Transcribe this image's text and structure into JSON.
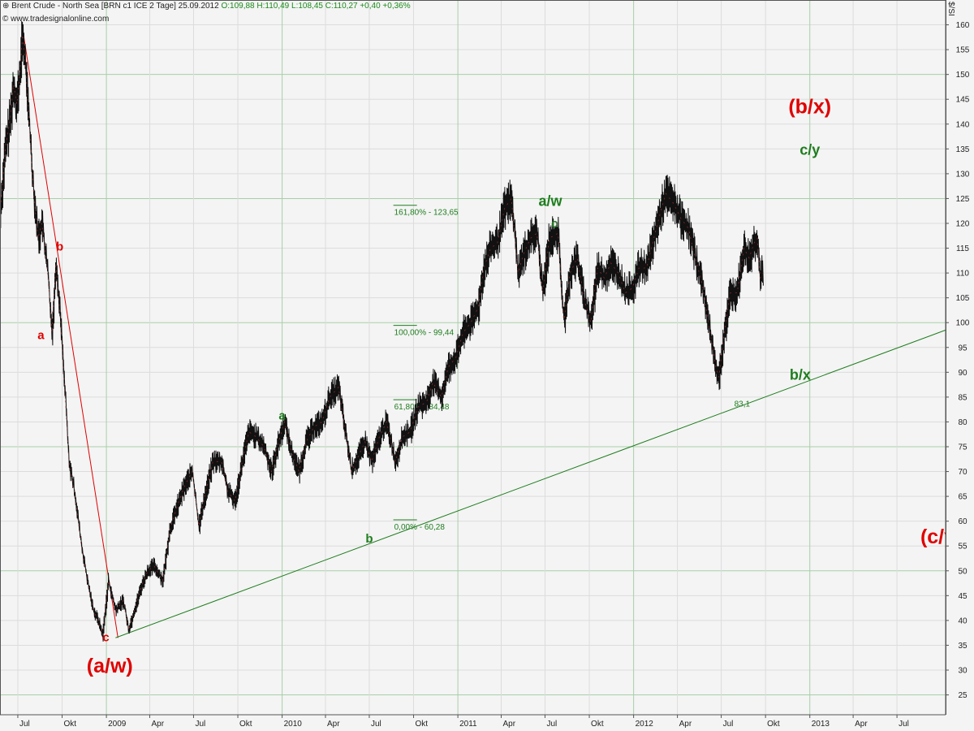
{
  "header": {
    "instrument": "Brent Crude - North Sea [BRN c1 ICE  2 Tage] 25.09.2012",
    "ohlc": "O:109,88 H:110,49 L:108,45",
    "change": "C:110,27 +0,40 +0,36%",
    "source": "© www.tradesignalonline.com",
    "unit": "$/SI"
  },
  "chart_data": {
    "type": "line",
    "title": "Brent Crude - North Sea [BRN c1 ICE  2 Tage] 25.09.2012",
    "ylim": [
      21,
      165
    ],
    "xlim": [
      "2008-05-25",
      "2013-10-10"
    ],
    "y_ticks": [
      25,
      30,
      35,
      40,
      45,
      50,
      55,
      60,
      65,
      70,
      75,
      80,
      85,
      90,
      95,
      100,
      105,
      110,
      115,
      120,
      125,
      130,
      135,
      140,
      145,
      150,
      155,
      160
    ],
    "grid": true,
    "x_ticks": [
      {
        "date": "2008-07-01",
        "label": "Jul"
      },
      {
        "date": "2008-10-01",
        "label": "Okt"
      },
      {
        "date": "2009-01-01",
        "label": "2009"
      },
      {
        "date": "2009-04-01",
        "label": "Apr"
      },
      {
        "date": "2009-07-01",
        "label": "Jul"
      },
      {
        "date": "2009-10-01",
        "label": "Okt"
      },
      {
        "date": "2010-01-01",
        "label": "2010"
      },
      {
        "date": "2010-04-01",
        "label": "Apr"
      },
      {
        "date": "2010-07-01",
        "label": "Jul"
      },
      {
        "date": "2010-10-01",
        "label": "Okt"
      },
      {
        "date": "2011-01-01",
        "label": "2011"
      },
      {
        "date": "2011-04-01",
        "label": "Apr"
      },
      {
        "date": "2011-07-01",
        "label": "Jul"
      },
      {
        "date": "2011-10-01",
        "label": "Okt"
      },
      {
        "date": "2012-01-01",
        "label": "2012"
      },
      {
        "date": "2012-04-01",
        "label": "Apr"
      },
      {
        "date": "2012-07-01",
        "label": "Jul"
      },
      {
        "date": "2012-10-01",
        "label": "Okt"
      },
      {
        "date": "2013-01-01",
        "label": "2013"
      },
      {
        "date": "2013-04-01",
        "label": "Apr"
      },
      {
        "date": "2013-07-01",
        "label": "Jul"
      }
    ],
    "series": [
      {
        "color": "#111111",
        "points": [
          [
            "2008-05-25",
            122
          ],
          [
            "2008-06-05",
            135
          ],
          [
            "2008-06-15",
            141
          ],
          [
            "2008-06-22",
            148
          ],
          [
            "2008-06-29",
            144
          ],
          [
            "2008-07-05",
            150
          ],
          [
            "2008-07-11",
            158
          ],
          [
            "2008-07-18",
            150
          ],
          [
            "2008-07-26",
            138
          ],
          [
            "2008-08-03",
            126
          ],
          [
            "2008-08-12",
            117
          ],
          [
            "2008-08-20",
            120
          ],
          [
            "2008-09-01",
            110
          ],
          [
            "2008-09-10",
            98
          ],
          [
            "2008-09-18",
            112
          ],
          [
            "2008-09-28",
            100
          ],
          [
            "2008-10-08",
            84
          ],
          [
            "2008-10-15",
            72
          ],
          [
            "2008-10-28",
            65
          ],
          [
            "2008-11-10",
            55
          ],
          [
            "2008-11-22",
            48
          ],
          [
            "2008-12-05",
            42
          ],
          [
            "2008-12-15",
            40
          ],
          [
            "2008-12-24",
            37
          ],
          [
            "2009-01-05",
            48
          ],
          [
            "2009-01-12",
            45
          ],
          [
            "2009-01-20",
            42
          ],
          [
            "2009-02-05",
            44
          ],
          [
            "2009-02-16",
            38
          ],
          [
            "2009-02-28",
            42
          ],
          [
            "2009-03-15",
            47
          ],
          [
            "2009-03-28",
            50
          ],
          [
            "2009-04-10",
            51
          ],
          [
            "2009-04-28",
            48
          ],
          [
            "2009-05-12",
            58
          ],
          [
            "2009-05-28",
            63
          ],
          [
            "2009-06-12",
            67
          ],
          [
            "2009-06-28",
            70
          ],
          [
            "2009-07-12",
            59
          ],
          [
            "2009-07-22",
            64
          ],
          [
            "2009-08-10",
            72
          ],
          [
            "2009-08-28",
            72
          ],
          [
            "2009-09-10",
            66
          ],
          [
            "2009-09-25",
            64
          ],
          [
            "2009-10-10",
            72
          ],
          [
            "2009-10-24",
            78
          ],
          [
            "2009-11-08",
            77
          ],
          [
            "2009-11-24",
            75
          ],
          [
            "2009-12-10",
            70
          ],
          [
            "2009-12-22",
            75
          ],
          [
            "2010-01-06",
            80
          ],
          [
            "2010-01-20",
            74
          ],
          [
            "2010-02-05",
            70
          ],
          [
            "2010-02-20",
            76
          ],
          [
            "2010-03-08",
            79
          ],
          [
            "2010-03-25",
            80
          ],
          [
            "2010-04-10",
            85
          ],
          [
            "2010-04-28",
            87
          ],
          [
            "2010-05-12",
            78
          ],
          [
            "2010-05-25",
            70
          ],
          [
            "2010-06-08",
            73
          ],
          [
            "2010-06-22",
            76
          ],
          [
            "2010-07-06",
            72
          ],
          [
            "2010-07-22",
            77
          ],
          [
            "2010-08-06",
            80
          ],
          [
            "2010-08-24",
            72
          ],
          [
            "2010-09-08",
            77
          ],
          [
            "2010-09-24",
            78
          ],
          [
            "2010-10-10",
            83
          ],
          [
            "2010-10-28",
            84
          ],
          [
            "2010-11-10",
            88
          ],
          [
            "2010-11-28",
            85
          ],
          [
            "2010-12-12",
            91
          ],
          [
            "2010-12-28",
            93
          ],
          [
            "2011-01-12",
            98
          ],
          [
            "2011-01-28",
            100
          ],
          [
            "2011-02-12",
            103
          ],
          [
            "2011-02-24",
            111
          ],
          [
            "2011-03-10",
            115
          ],
          [
            "2011-03-24",
            116
          ],
          [
            "2011-04-08",
            123
          ],
          [
            "2011-04-22",
            125
          ],
          [
            "2011-05-06",
            110
          ],
          [
            "2011-05-18",
            114
          ],
          [
            "2011-06-01",
            117
          ],
          [
            "2011-06-14",
            118
          ],
          [
            "2011-06-26",
            106
          ],
          [
            "2011-07-10",
            117
          ],
          [
            "2011-07-28",
            118
          ],
          [
            "2011-08-09",
            100
          ],
          [
            "2011-08-22",
            110
          ],
          [
            "2011-09-06",
            113
          ],
          [
            "2011-09-22",
            104
          ],
          [
            "2011-10-04",
            100
          ],
          [
            "2011-10-18",
            111
          ],
          [
            "2011-11-01",
            109
          ],
          [
            "2011-11-15",
            112
          ],
          [
            "2011-11-30",
            110
          ],
          [
            "2011-12-15",
            106
          ],
          [
            "2011-12-30",
            107
          ],
          [
            "2012-01-12",
            111
          ],
          [
            "2012-01-28",
            111
          ],
          [
            "2012-02-12",
            117
          ],
          [
            "2012-02-28",
            123
          ],
          [
            "2012-03-08",
            126
          ],
          [
            "2012-03-24",
            124
          ],
          [
            "2012-04-08",
            121
          ],
          [
            "2012-04-24",
            119
          ],
          [
            "2012-05-08",
            113
          ],
          [
            "2012-05-22",
            108
          ],
          [
            "2012-06-06",
            99
          ],
          [
            "2012-06-20",
            91
          ],
          [
            "2012-06-26",
            89
          ],
          [
            "2012-07-06",
            97
          ],
          [
            "2012-07-20",
            106
          ],
          [
            "2012-08-03",
            106
          ],
          [
            "2012-08-17",
            115
          ],
          [
            "2012-08-28",
            113
          ],
          [
            "2012-09-07",
            116
          ],
          [
            "2012-09-14",
            117
          ],
          [
            "2012-09-20",
            109
          ],
          [
            "2012-09-25",
            110
          ]
        ]
      }
    ],
    "trendlines": [
      {
        "from": [
          "2008-07-12",
          158.5
        ],
        "to": [
          "2009-01-25",
          36.5
        ],
        "color": "#e00000"
      },
      {
        "from": [
          "2009-01-20",
          36.5
        ],
        "to": [
          "2013-10-10",
          98.5
        ],
        "color": "#1e7d1e"
      }
    ],
    "fib_levels": [
      {
        "label": "161,80% - 123,65",
        "value": 123.65
      },
      {
        "label": "100,00% - 99,44",
        "value": 99.44
      },
      {
        "label": "61,80% - 84,48",
        "value": 84.48
      },
      {
        "label": "0,00% - 60,28",
        "value": 60.28
      }
    ],
    "trend_value_label": {
      "text": "83,1",
      "at": [
        "2012-07-28",
        83.1
      ]
    },
    "annotations": [
      {
        "text": "b",
        "color": "red",
        "size": "small",
        "at": [
          "2008-09-26",
          114.5
        ]
      },
      {
        "text": "a",
        "color": "red",
        "size": "small",
        "at": [
          "2008-08-18",
          96.7
        ]
      },
      {
        "text": "c",
        "color": "red",
        "size": "small",
        "at": [
          "2008-12-31",
          35.8
        ]
      },
      {
        "text": "(a/w)",
        "color": "red",
        "size": "large",
        "at": [
          "2009-01-08",
          29.5
        ]
      },
      {
        "text": "(b/x)",
        "color": "red",
        "size": "large",
        "at": [
          "2013-01-01",
          142.2
        ]
      },
      {
        "text": "(c/y)",
        "color": "red",
        "size": "large",
        "at": [
          "2013-10-01",
          55.5
        ]
      },
      {
        "text": "a",
        "color": "green",
        "size": "small",
        "at": [
          "2010-01-01",
          80.5
        ]
      },
      {
        "text": "b",
        "color": "green",
        "size": "small",
        "at": [
          "2010-07-01",
          55.7
        ]
      },
      {
        "text": "a/w",
        "color": "green",
        "size": "medium",
        "at": [
          "2011-07-12",
          123.5
        ]
      },
      {
        "text": "c",
        "color": "green",
        "size": "small",
        "at": [
          "2011-07-21",
          119.2
        ]
      },
      {
        "text": "c/y",
        "color": "green",
        "size": "medium",
        "at": [
          "2013-01-01",
          133.8
        ]
      },
      {
        "text": "b/x",
        "color": "green",
        "size": "medium",
        "at": [
          "2012-12-12",
          88.5
        ]
      }
    ]
  }
}
